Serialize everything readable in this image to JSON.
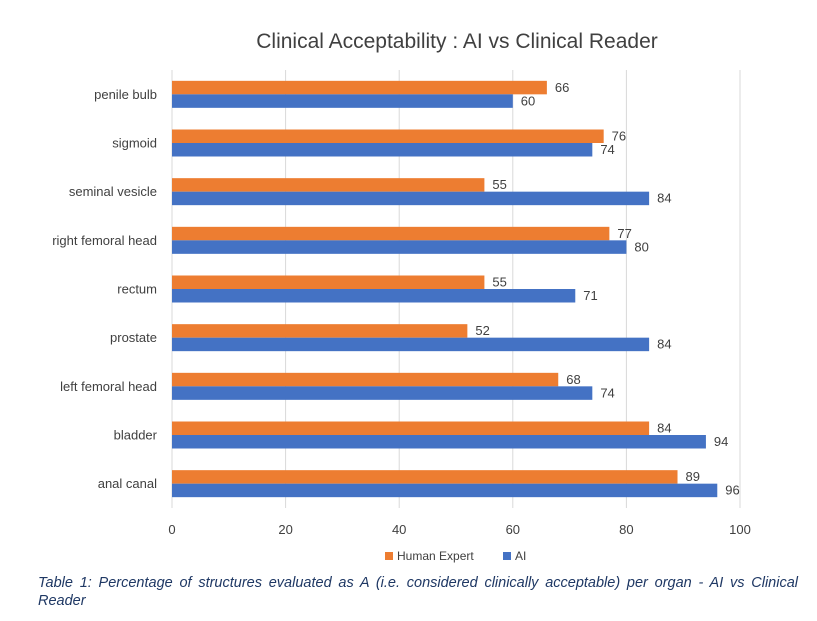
{
  "caption": "Table 1: Percentage of structures evaluated as A (i.e. considered clinically acceptable) per organ - AI vs Clinical Reader",
  "chart_data": {
    "type": "bar",
    "orientation": "horizontal",
    "title": "Clinical Acceptability : AI vs Clinical Reader",
    "xlabel": "",
    "ylabel": "",
    "categories": [
      "penile bulb",
      "sigmoid",
      "seminal vesicle",
      "right femoral head",
      "rectum",
      "prostate",
      "left femoral head",
      "bladder",
      "anal canal"
    ],
    "series": [
      {
        "name": "Human Expert",
        "color": "#ED7D31",
        "values": [
          66,
          76,
          55,
          77,
          55,
          52,
          68,
          84,
          89
        ]
      },
      {
        "name": "AI",
        "color": "#4472C4",
        "values": [
          60,
          74,
          84,
          80,
          71,
          84,
          74,
          94,
          96
        ]
      }
    ],
    "xlim": [
      0,
      100
    ],
    "xticks": [
      0,
      20,
      40,
      60,
      80,
      100
    ],
    "grid": true,
    "legend": "bottom"
  }
}
